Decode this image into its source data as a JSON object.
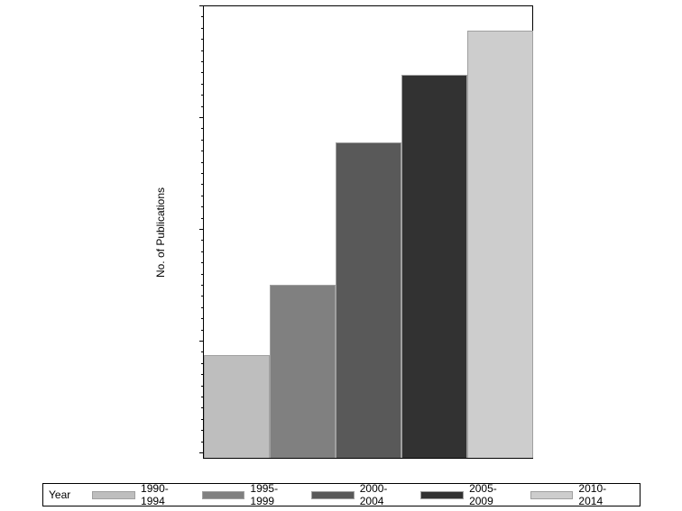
{
  "chart_data": {
    "type": "bar",
    "title": "",
    "xlabel": "",
    "ylabel": "No. of Publications",
    "ylim": [
      0,
      400
    ],
    "yticks": [
      0,
      100,
      200,
      300,
      400
    ],
    "grid": false,
    "legend_position": "bottom",
    "legend_title": "Year",
    "categories": [
      "1990-1994",
      "1995-1999",
      "2000-2004",
      "2005-2009",
      "2010-2014"
    ],
    "values": [
      92,
      155,
      282,
      343,
      382
    ],
    "colors": [
      "#bebebe",
      "#808080",
      "#595959",
      "#323232",
      "#cdcdcd"
    ]
  },
  "axis": {
    "ylabel": "No. of Publications",
    "ticks": [
      "400",
      "300",
      "200",
      "100",
      "0"
    ]
  },
  "legend": {
    "title": "Year",
    "items": [
      {
        "label": "1990-1994",
        "color": "#bebebe"
      },
      {
        "label": "1995-1999",
        "color": "#808080"
      },
      {
        "label": "2000-2004",
        "color": "#595959"
      },
      {
        "label": "2005-2009",
        "color": "#323232"
      },
      {
        "label": "2010-2014",
        "color": "#cdcdcd"
      }
    ]
  }
}
